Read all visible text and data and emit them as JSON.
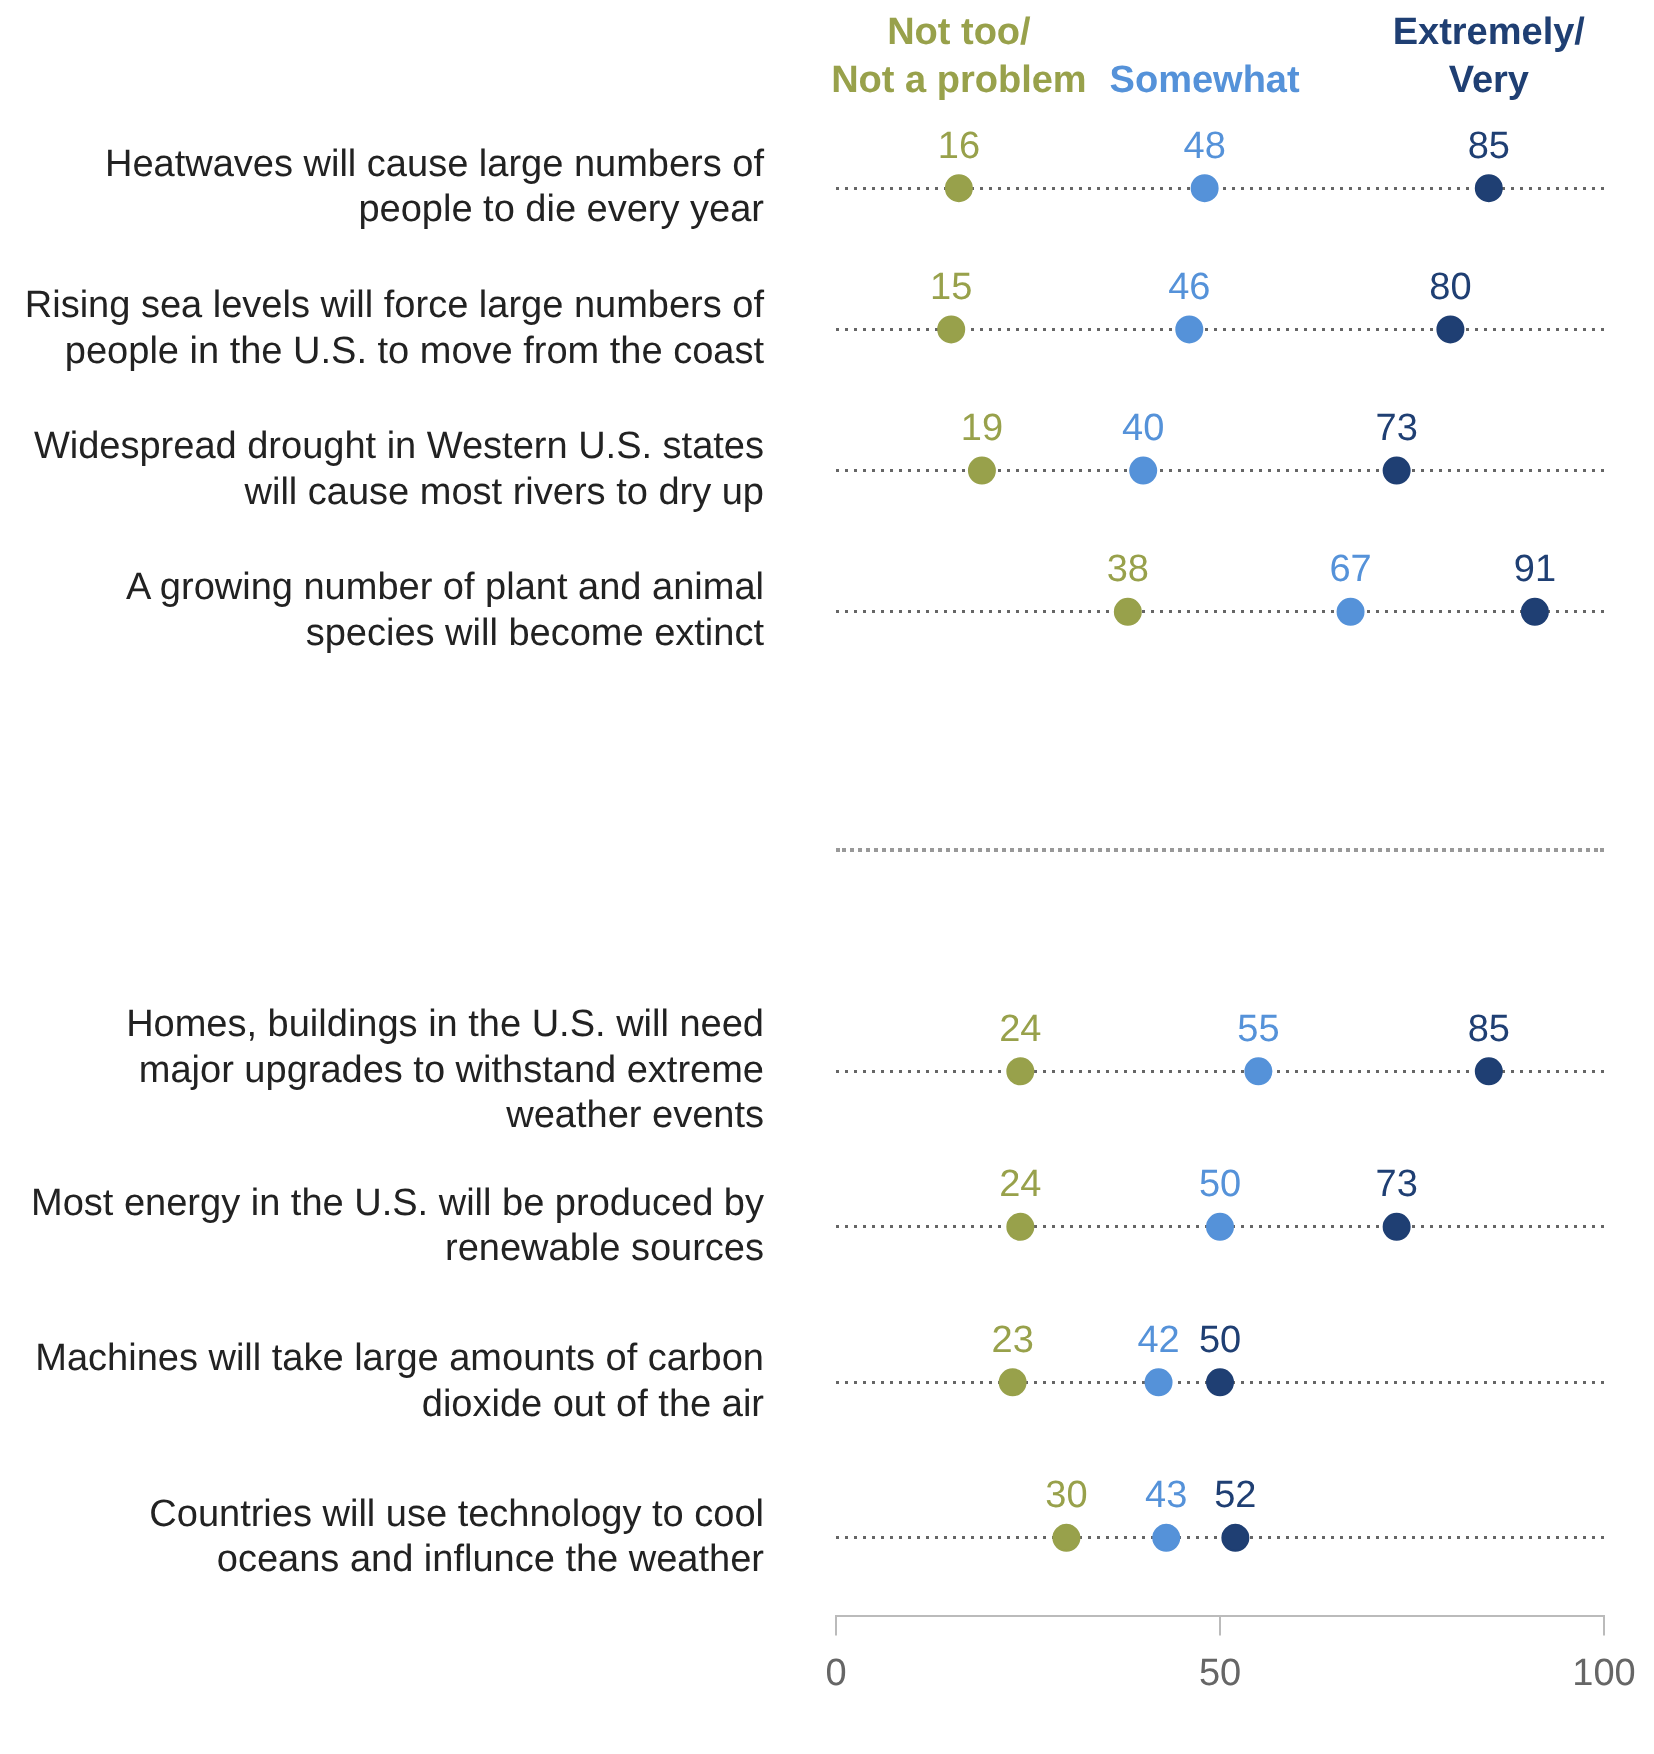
{
  "chart_data": [
    {
      "type": "scatter",
      "categories": [
        "Heatwaves will cause large numbers of people to die every year",
        "Rising sea levels will force large numbers of people in the U.S. to move from the coast",
        "Widespread drought in Western U.S. states will cause most rivers to dry up",
        "A growing number of plant and animal species will become extinct"
      ],
      "series": [
        {
          "name": "Not too/ Not a problem",
          "color": "#98a14b",
          "values": [
            16,
            15,
            19,
            38
          ]
        },
        {
          "name": "Somewhat",
          "color": "#5592d9",
          "values": [
            48,
            46,
            40,
            67
          ]
        },
        {
          "name": "Extremely/ Very",
          "color": "#1f3f73",
          "values": [
            85,
            80,
            73,
            91
          ]
        }
      ],
      "orientation": "horizontal",
      "xlim": [
        0,
        100
      ],
      "xticks": [
        0,
        50,
        100
      ],
      "tick_labels": "y",
      "grid": "y",
      "marker": "circle",
      "data_labels": true
    },
    {
      "type": "scatter",
      "categories": [
        "Homes, buildings in the U.S. will need major upgrades to withstand extreme weather events",
        "Most energy in the U.S. will be produced by renewable sources",
        "Machines will take large amounts of carbon dioxide out of the air",
        "Countries will use technology to cool oceans and influnce the weather"
      ],
      "series": [
        {
          "color": "#98a14b",
          "values": [
            24,
            24,
            23,
            30
          ]
        },
        {
          "color": "#5592d9",
          "values": [
            55,
            50,
            42,
            43
          ]
        },
        {
          "color": "#1f3f73",
          "values": [
            85,
            73,
            50,
            52
          ]
        }
      ],
      "orientation": "horizontal",
      "xlim": [
        0,
        100
      ],
      "xticks": [
        0,
        50,
        100
      ],
      "grid": "y",
      "marker": "circle",
      "data_labels": true
    }
  ]
}
